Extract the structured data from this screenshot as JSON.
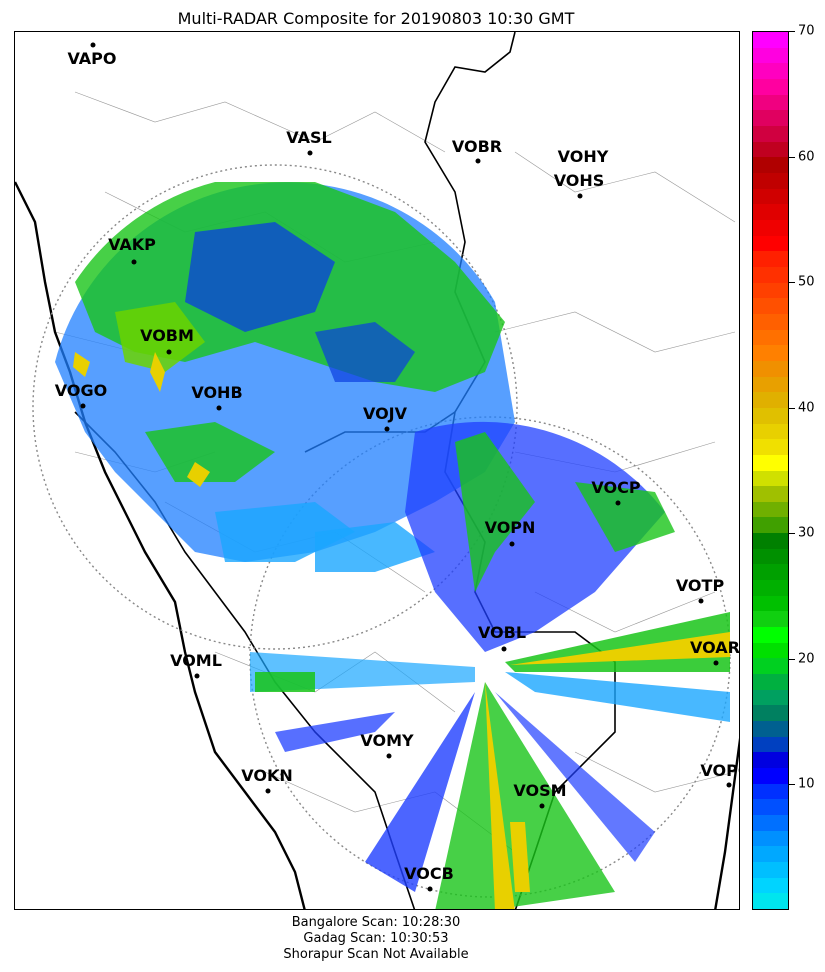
{
  "title": "Multi-RADAR Composite for 20190803 10:30 GMT",
  "stations": [
    {
      "code": "VAPO"
    },
    {
      "code": "VASL"
    },
    {
      "code": "VOBR"
    },
    {
      "code": "VOHY"
    },
    {
      "code": "VOHS"
    },
    {
      "code": "VAKP"
    },
    {
      "code": "VOBM"
    },
    {
      "code": "VOGO"
    },
    {
      "code": "VOHB"
    },
    {
      "code": "VOJV"
    },
    {
      "code": "VOCP"
    },
    {
      "code": "VOPN"
    },
    {
      "code": "VOTP"
    },
    {
      "code": "VOBL"
    },
    {
      "code": "VOAR"
    },
    {
      "code": "VOML"
    },
    {
      "code": "VOMY"
    },
    {
      "code": "VOKN"
    },
    {
      "code": "VOSM"
    },
    {
      "code": "VOPC"
    },
    {
      "code": "VOCB"
    }
  ],
  "colorbar": {
    "min": 0,
    "max": 70,
    "ticks": [
      "10",
      "20",
      "30",
      "40",
      "50",
      "60",
      "70"
    ],
    "colors": [
      "#00e5ee",
      "#00d4ff",
      "#00bfff",
      "#00a8ff",
      "#0090ff",
      "#0070ff",
      "#0050ff",
      "#0030ff",
      "#0000ff",
      "#0000e0",
      "#0040c0",
      "#006090",
      "#008060",
      "#00a060",
      "#00b040",
      "#00d020",
      "#00e000",
      "#00ff00",
      "#10d010",
      "#00c000",
      "#00b000",
      "#00a000",
      "#009000",
      "#008000",
      "#40a000",
      "#70b000",
      "#a0c000",
      "#d0e000",
      "#ffff00",
      "#f0e000",
      "#e8d000",
      "#e0c000",
      "#e0b000",
      "#e8a000",
      "#f09000",
      "#ff8000",
      "#ff7000",
      "#ff6000",
      "#ff5000",
      "#ff4000",
      "#ff3000",
      "#ff2000",
      "#ff0000",
      "#f00000",
      "#e00000",
      "#d00000",
      "#c00000",
      "#b00000",
      "#c00020",
      "#d00040",
      "#e00060",
      "#f00080",
      "#ff00a0",
      "#ff00c0",
      "#ff00e0",
      "#ff00ff"
    ]
  },
  "footer": {
    "line1": "Bangalore Scan: 10:28:30",
    "line2": "Gadag Scan: 10:30:53",
    "line3": "Shorapur Scan Not Available"
  }
}
